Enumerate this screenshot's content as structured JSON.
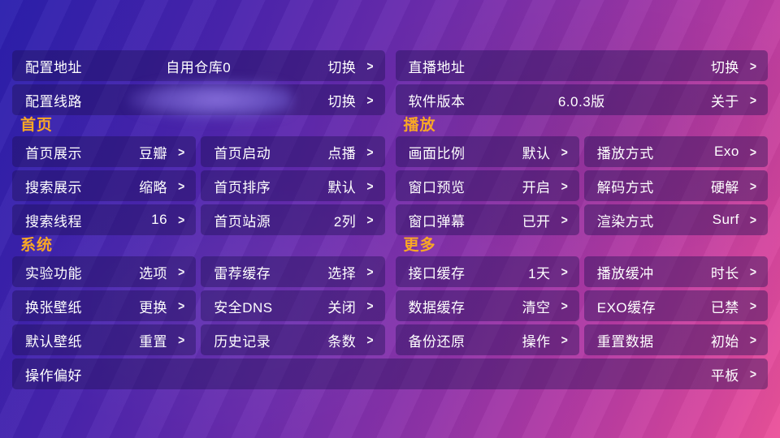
{
  "theme": {
    "bg_from": "#2b1fad",
    "bg_to": "#ec529a",
    "card_bg": "rgba(27,14,79,0.40)",
    "section_title_color": "#f9a825",
    "text_color": "#ffffff"
  },
  "chevron": ">",
  "top": {
    "config_address": {
      "label": "配置地址",
      "value": "自用仓库0",
      "action": "切换"
    },
    "config_line": {
      "label": "配置线路",
      "value": "",
      "action": "切换"
    },
    "live_address": {
      "label": "直播地址",
      "value": "",
      "action": "切换"
    },
    "software_version": {
      "label": "软件版本",
      "value": "6.0.3版",
      "action": "关于"
    }
  },
  "sections": [
    {
      "id": "home",
      "title": "首页",
      "items": [
        {
          "label": "首页展示",
          "value": "豆瓣"
        },
        {
          "label": "首页启动",
          "value": "点播"
        },
        {
          "label": "搜索展示",
          "value": "缩略"
        },
        {
          "label": "首页排序",
          "value": "默认"
        },
        {
          "label": "搜索线程",
          "value": "16"
        },
        {
          "label": "首页站源",
          "value": "2列"
        }
      ]
    },
    {
      "id": "play",
      "title": "播放",
      "items": [
        {
          "label": "画面比例",
          "value": "默认"
        },
        {
          "label": "播放方式",
          "value": "Exo"
        },
        {
          "label": "窗口预览",
          "value": "开启"
        },
        {
          "label": "解码方式",
          "value": "硬解"
        },
        {
          "label": "窗口弹幕",
          "value": "已开"
        },
        {
          "label": "渲染方式",
          "value": "Surf"
        }
      ]
    },
    {
      "id": "system",
      "title": "系统",
      "items": [
        {
          "label": "实验功能",
          "value": "选项"
        },
        {
          "label": "雷荐缓存",
          "value": "选择"
        },
        {
          "label": "换张壁纸",
          "value": "更换"
        },
        {
          "label": "安全DNS",
          "value": "关闭"
        },
        {
          "label": "默认壁纸",
          "value": "重置"
        },
        {
          "label": "历史记录",
          "value": "条数"
        }
      ]
    },
    {
      "id": "more",
      "title": "更多",
      "items": [
        {
          "label": "接口缓存",
          "value": "1天"
        },
        {
          "label": "播放缓冲",
          "value": "时长"
        },
        {
          "label": "数据缓存",
          "value": "清空"
        },
        {
          "label": "EXO缓存",
          "value": "已禁"
        },
        {
          "label": "备份还原",
          "value": "操作"
        },
        {
          "label": "重置数据",
          "value": "初始"
        }
      ]
    }
  ],
  "bottom": {
    "label": "操作偏好",
    "value": "平板"
  }
}
